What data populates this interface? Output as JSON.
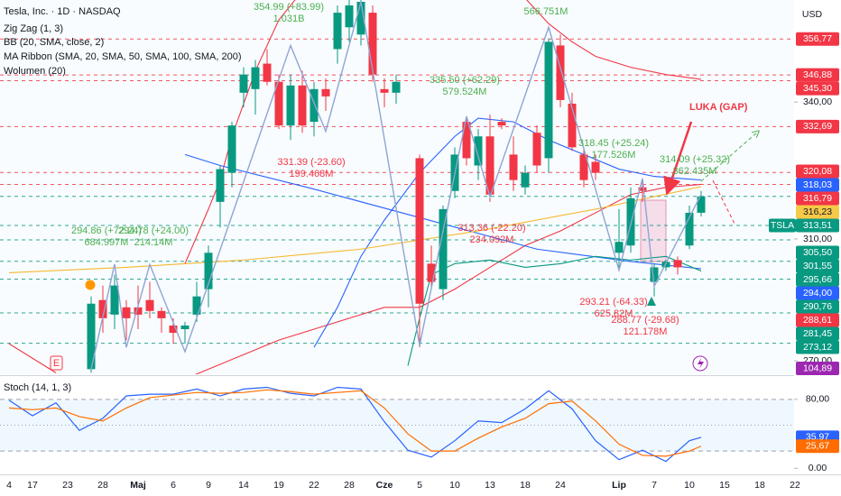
{
  "chart_data": [
    {
      "type": "candlestick",
      "title": "Tesla, Inc. · 1D · NASDAQ",
      "indicators": [
        "Zig Zag (1, 3)",
        "BB (20, SMA, close, 2)",
        "MA Ribbon (SMA, 20, SMA, 50, SMA, 100, SMA, 200)",
        "Wolumen (20)"
      ],
      "currency": "USD",
      "symbol": "TSLA",
      "gap_label": "LUKA (GAP)",
      "earnings_marker": "E",
      "categories": [
        "4",
        null,
        "17",
        null,
        null,
        "23",
        null,
        null,
        "28",
        null,
        null,
        "Maj",
        null,
        null,
        "6",
        null,
        null,
        "9",
        null,
        null,
        "14",
        null,
        null,
        "19",
        null,
        null,
        "22",
        null,
        null,
        "28",
        null,
        null,
        "Cze",
        null,
        null,
        "5",
        null,
        null,
        "10",
        null,
        null,
        "13",
        null,
        null,
        "18",
        null,
        null,
        "24",
        null,
        null,
        null,
        null,
        "Lip",
        null,
        null,
        "7",
        null,
        null,
        "10",
        null,
        null,
        "15",
        null,
        null,
        "18",
        null,
        null,
        "22"
      ],
      "open": [
        null,
        null,
        null,
        null,
        null,
        null,
        null,
        266,
        285,
        281,
        283,
        283,
        285,
        282,
        278,
        277,
        281,
        288,
        312,
        320,
        342,
        343,
        350,
        345,
        333,
        344,
        334,
        343,
        354,
        360,
        358,
        364,
        343,
        342,
        null,
        324,
        295,
        288,
        315,
        334,
        322,
        330,
        334,
        325,
        316,
        331,
        324,
        355,
        339,
        325,
        323,
        null,
        298,
        300,
        316,
        290,
        294,
        296,
        300,
        309,
        null,
        null,
        null,
        null,
        null,
        null,
        null,
        null
      ],
      "high": [
        null,
        null,
        null,
        null,
        null,
        null,
        null,
        286,
        289,
        292,
        285,
        289,
        290,
        283,
        280,
        279,
        290,
        300,
        322,
        334,
        349,
        351,
        354,
        347,
        347,
        348,
        345,
        346,
        366,
        368,
        368,
        366,
        346,
        347,
        null,
        325,
        300,
        311,
        327,
        335,
        332,
        336,
        335,
        330,
        322,
        333,
        357,
        358,
        342,
        327,
        325,
        null,
        310,
        316,
        318,
        295,
        296,
        297,
        311,
        315,
        null,
        null,
        null,
        null,
        null,
        null,
        null,
        null
      ],
      "low": [
        null,
        null,
        null,
        null,
        null,
        null,
        null,
        265,
        276,
        277,
        274,
        277,
        280,
        276,
        273,
        273,
        279,
        283,
        305,
        316,
        338,
        336,
        344,
        332,
        329,
        331,
        330,
        337,
        350,
        356,
        355,
        345,
        338,
        339,
        null,
        272,
        288,
        285,
        313,
        322,
        318,
        312,
        332,
        315,
        314,
        320,
        320,
        338,
        326,
        316,
        318,
        null,
        294,
        298,
        312,
        286,
        293,
        292,
        299,
        308,
        null,
        null,
        null,
        null,
        null,
        null,
        null,
        null
      ],
      "close": [
        null,
        null,
        null,
        null,
        null,
        null,
        null,
        284,
        280,
        289,
        280,
        281,
        282,
        280,
        276,
        278,
        286,
        298,
        321,
        333,
        347,
        349,
        345,
        333,
        344,
        333,
        343,
        341,
        364,
        366,
        367,
        347,
        342,
        345,
        null,
        284,
        290,
        310,
        325,
        324,
        330,
        314,
        333,
        318,
        320,
        322,
        356,
        340,
        327,
        318,
        320,
        null,
        301,
        313,
        315,
        294,
        295.5,
        294,
        309,
        313.5,
        null,
        null,
        null,
        null,
        null,
        null,
        null,
        null
      ],
      "up_color": "#089981",
      "down_color": "#f23645",
      "ylim": [
        264.6,
        367.5
      ],
      "yticks": [
        {
          "value": 340,
          "label": "340,00"
        },
        {
          "value": 310,
          "label": "310,00"
        },
        {
          "value": 270,
          "label": "270,00"
        }
      ],
      "price_labels": [
        {
          "value": 356.77,
          "label": "356,77",
          "color": "#f23645",
          "line": true
        },
        {
          "value": 346.88,
          "label": "346,88",
          "color": "#f23645",
          "line": true
        },
        {
          "value": 345.3,
          "label": "345,30",
          "color": "#f23645",
          "line": true
        },
        {
          "value": 332.69,
          "label": "332,69",
          "color": "#f23645",
          "line": true
        },
        {
          "value": 320.08,
          "label": "320,08",
          "color": "#f23645",
          "line": true
        },
        {
          "value": 318.03,
          "label": "318,03",
          "color": "#2962ff",
          "line": false
        },
        {
          "value": 316.79,
          "label": "316,79",
          "color": "#f23645",
          "line": true
        },
        {
          "value": 316.23,
          "label": "316,23",
          "color": "#f7c948",
          "line": false
        },
        {
          "value": 313.51,
          "label": "313,51",
          "color": "#089981",
          "line": true
        },
        {
          "value": 305.5,
          "label": "305,50",
          "color": "#089981",
          "line": true
        },
        {
          "value": 301.55,
          "label": "301,55",
          "color": "#089981",
          "line": true
        },
        {
          "value": 295.66,
          "label": "295,66",
          "color": "#089981",
          "line": true
        },
        {
          "value": 294,
          "label": "294,00",
          "color": "#2962ff",
          "line": false
        },
        {
          "value": 290.76,
          "label": "290,76",
          "color": "#089981",
          "line": true
        },
        {
          "value": 288.61,
          "label": "288,61",
          "color": "#f23645",
          "line": false
        },
        {
          "value": 281.45,
          "label": "281,45",
          "color": "#089981",
          "line": true
        },
        {
          "value": 273.12,
          "label": "273,12",
          "color": "#089981",
          "line": true
        }
      ],
      "volume_label": {
        "value": 104.89,
        "label": "104,89",
        "color": "#9c27b0"
      },
      "overlays": [
        {
          "color": "#f23645",
          "x": [
            15,
            17,
            18,
            19,
            21,
            23,
            25,
            44,
            46,
            48,
            50,
            53,
            56,
            59
          ],
          "values": [
            295,
            310,
            318,
            330,
            348,
            362,
            370,
            368,
            361,
            356,
            352,
            349,
            347,
            345.7
          ]
        },
        {
          "color": "#f23645",
          "x": [
            0,
            2,
            4
          ],
          "values": [
            273,
            269,
            265
          ]
        },
        {
          "color": "#f23645",
          "x": [
            14,
            17,
            20,
            23,
            26,
            29,
            32,
            35,
            38,
            41,
            44,
            47,
            50,
            53,
            56,
            59
          ],
          "values": [
            262,
            266,
            270,
            274,
            277,
            280,
            283,
            283,
            288,
            294,
            300,
            304,
            309,
            314,
            316,
            316.8
          ]
        },
        {
          "color": "#2962ff",
          "x": [
            26,
            28,
            30,
            32,
            35,
            38,
            40,
            43,
            46,
            49,
            52,
            55,
            59
          ],
          "values": [
            272,
            283,
            297,
            307,
            320,
            330,
            335,
            334,
            329,
            325,
            321,
            319,
            318
          ]
        },
        {
          "color": "#2962ff",
          "x": [
            15,
            18,
            26,
            36,
            45,
            53,
            59
          ],
          "values": [
            325,
            322,
            315.5,
            306.8,
            299,
            295.6,
            293.6
          ]
        },
        {
          "color": "#f7b731",
          "x": [
            0,
            10,
            20,
            30,
            40,
            50,
            59
          ],
          "values": [
            292.5,
            294,
            296,
            299,
            304,
            310,
            316.2
          ]
        },
        {
          "color": "#089981",
          "x": [
            34,
            35,
            36,
            38,
            41,
            44,
            47,
            50,
            53,
            56,
            59
          ],
          "values": [
            267,
            280,
            292,
            295,
            296,
            294,
            295,
            297,
            296,
            297,
            293
          ]
        }
      ],
      "zigzag": {
        "color": "#90a4d4",
        "x": [
          7,
          9,
          10,
          12,
          15,
          24,
          27,
          30,
          35,
          39,
          41,
          46,
          52,
          54,
          55,
          59
        ],
        "values": [
          266,
          294.86,
          272,
          294.78,
          270.8,
          354.99,
          331.39,
          367,
          272.5,
          335.5,
          313.36,
          360,
          293.21,
          318.45,
          288.77,
          314.09
        ]
      },
      "zigzag_labels": [
        {
          "lines": [
            "354.99 (+83.99)",
            "1.031B"
          ],
          "color": "#4caf50"
        },
        {
          "lines": [
            "331.39 (-23.60)",
            "199.468M"
          ],
          "color": "#f23645"
        },
        {
          "lines": [
            "294.86 (+72.24)",
            "684.997M"
          ],
          "color": "#4caf50"
        },
        {
          "lines": [
            "294.78 (+24.00)",
            "214.14M"
          ],
          "color": "#4caf50"
        },
        {
          "lines": [
            "335.50 (+62.29)",
            "579.524M"
          ],
          "color": "#4caf50"
        },
        {
          "lines": [
            "313.36 (-22.20)",
            "234.092M"
          ],
          "color": "#f23645"
        },
        {
          "lines": [
            "318.45 (+25.24)",
            "177.526M"
          ],
          "color": "#4caf50"
        },
        {
          "lines": [
            "314.09 (+25.32)",
            "362.435M"
          ],
          "color": "#4caf50"
        },
        {
          "lines": [
            "293.21 (-64.33)",
            "625.82M"
          ],
          "color": "#f23645"
        },
        {
          "lines": [
            "288.77 (-29.68)",
            "121.178M"
          ],
          "color": "#f23645"
        },
        {
          "lines": [
            "566.751M"
          ],
          "color": "#4caf50"
        }
      ]
    },
    {
      "type": "line",
      "title": "Stoch (14, 1, 3)",
      "x": [
        0,
        2,
        4,
        6,
        8,
        10,
        12,
        14,
        16,
        18,
        20,
        22,
        24,
        26,
        28,
        30,
        32,
        34,
        36,
        38,
        40,
        42,
        44,
        46,
        48,
        50,
        52,
        54,
        56,
        58,
        59
      ],
      "series": [
        {
          "color": "#2962ff",
          "values": [
            79,
            61,
            76,
            44,
            58,
            84,
            86,
            86,
            92,
            84,
            92,
            94,
            87,
            84,
            94,
            92,
            54,
            21,
            13,
            32,
            55,
            53,
            69,
            90,
            69,
            32,
            10,
            21,
            8,
            32,
            35.97
          ]
        },
        {
          "color": "#ff6d00",
          "values": [
            70,
            68,
            70,
            60,
            55,
            70,
            82,
            85,
            88,
            87,
            88,
            91,
            89,
            86,
            88,
            90,
            70,
            40,
            20,
            20,
            35,
            48,
            58,
            75,
            78,
            55,
            28,
            15,
            14,
            20,
            25.67
          ]
        }
      ],
      "ylim": [
        -6,
        106
      ],
      "yticks": [
        {
          "value": 80,
          "label": "80,00"
        },
        {
          "value": 0,
          "label": "0.00"
        }
      ],
      "levels": [
        80,
        50,
        20
      ],
      "last_labels": [
        {
          "value": 35.97,
          "label": "35,97",
          "color": "#2962ff"
        },
        {
          "value": 25.67,
          "label": "25,67",
          "color": "#ff6d00"
        }
      ]
    }
  ]
}
